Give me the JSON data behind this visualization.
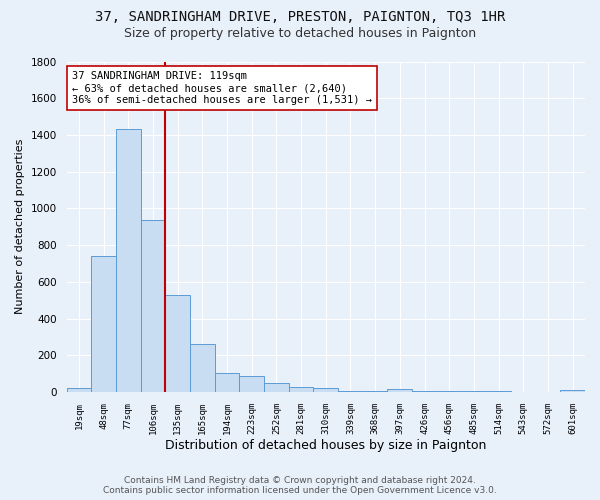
{
  "title1": "37, SANDRINGHAM DRIVE, PRESTON, PAIGNTON, TQ3 1HR",
  "title2": "Size of property relative to detached houses in Paignton",
  "xlabel": "Distribution of detached houses by size in Paignton",
  "ylabel": "Number of detached properties",
  "footer1": "Contains HM Land Registry data © Crown copyright and database right 2024.",
  "footer2": "Contains public sector information licensed under the Open Government Licence v3.0.",
  "bin_labels": [
    "19sqm",
    "48sqm",
    "77sqm",
    "106sqm",
    "135sqm",
    "165sqm",
    "194sqm",
    "223sqm",
    "252sqm",
    "281sqm",
    "310sqm",
    "339sqm",
    "368sqm",
    "397sqm",
    "426sqm",
    "456sqm",
    "485sqm",
    "514sqm",
    "543sqm",
    "572sqm",
    "601sqm"
  ],
  "bar_values": [
    20,
    740,
    1430,
    935,
    530,
    260,
    103,
    88,
    47,
    27,
    20,
    8,
    3,
    14,
    3,
    3,
    3,
    3,
    0,
    0,
    12
  ],
  "bar_color": "#c9ddf2",
  "bar_edge_color": "#5b9bd5",
  "vline_color": "#c00000",
  "vline_x": 3.5,
  "annotation_text": "37 SANDRINGHAM DRIVE: 119sqm\n← 63% of detached houses are smaller (2,640)\n36% of semi-detached houses are larger (1,531) →",
  "annotation_box_color": "#ffffff",
  "annotation_box_edge": "#c00000",
  "ylim": [
    0,
    1800
  ],
  "yticks": [
    0,
    200,
    400,
    600,
    800,
    1000,
    1200,
    1400,
    1600,
    1800
  ],
  "bg_color": "#e8f0fa",
  "grid_color": "#ffffff",
  "title1_fontsize": 10,
  "title2_fontsize": 9,
  "ann_fontsize": 7.5,
  "xlabel_fontsize": 9,
  "ylabel_fontsize": 8,
  "footer_fontsize": 6.5
}
